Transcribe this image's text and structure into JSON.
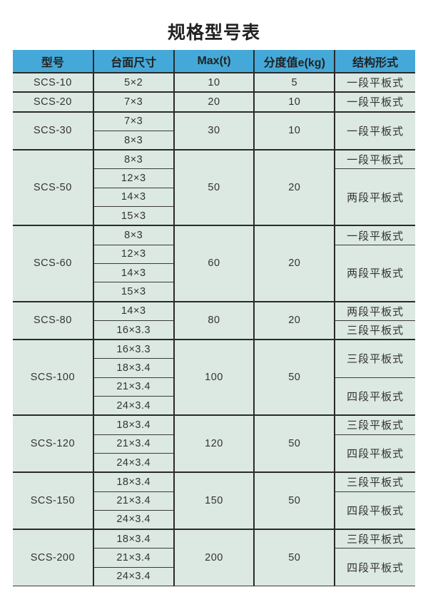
{
  "title": "规格型号表",
  "headers": [
    "型号",
    "台面尺寸",
    "Max(t)",
    "分度值e(kg)",
    "结构形式"
  ],
  "colors": {
    "header_bg": "#44a9d8",
    "row_bg": "#dce9e2",
    "border": "#2a2a2a"
  },
  "rows": [
    {
      "model": "SCS-10",
      "sizes": [
        "5×2"
      ],
      "max": "10",
      "division": "5",
      "structures": [
        {
          "label": "一段平板式",
          "span": 1
        }
      ]
    },
    {
      "model": "SCS-20",
      "sizes": [
        "7×3"
      ],
      "max": "20",
      "division": "10",
      "structures": [
        {
          "label": "一段平板式",
          "span": 1
        }
      ]
    },
    {
      "model": "SCS-30",
      "sizes": [
        "7×3",
        "8×3"
      ],
      "max": "30",
      "division": "10",
      "structures": [
        {
          "label": "一段平板式",
          "span": 2
        }
      ]
    },
    {
      "model": "SCS-50",
      "sizes": [
        "8×3",
        "12×3",
        "14×3",
        "15×3"
      ],
      "max": "50",
      "division": "20",
      "structures": [
        {
          "label": "一段平板式",
          "span": 1
        },
        {
          "label": "两段平板式",
          "span": 3
        }
      ]
    },
    {
      "model": "SCS-60",
      "sizes": [
        "8×3",
        "12×3",
        "14×3",
        "15×3"
      ],
      "max": "60",
      "division": "20",
      "structures": [
        {
          "label": "一段平板式",
          "span": 1
        },
        {
          "label": "两段平板式",
          "span": 3
        }
      ]
    },
    {
      "model": "SCS-80",
      "sizes": [
        "14×3",
        "16×3.3"
      ],
      "max": "80",
      "division": "20",
      "structures": [
        {
          "label": "两段平板式",
          "span": 1
        },
        {
          "label": "三段平板式",
          "span": 1
        }
      ]
    },
    {
      "model": "SCS-100",
      "sizes": [
        "16×3.3",
        "18×3.4",
        "21×3.4",
        "24×3.4"
      ],
      "max": "100",
      "division": "50",
      "structures": [
        {
          "label": "三段平板式",
          "span": 2
        },
        {
          "label": "四段平板式",
          "span": 2
        }
      ]
    },
    {
      "model": "SCS-120",
      "sizes": [
        "18×3.4",
        "21×3.4",
        "24×3.4"
      ],
      "max": "120",
      "division": "50",
      "structures": [
        {
          "label": "三段平板式",
          "span": 1
        },
        {
          "label": "四段平板式",
          "span": 2
        }
      ]
    },
    {
      "model": "SCS-150",
      "sizes": [
        "18×3.4",
        "21×3.4",
        "24×3.4"
      ],
      "max": "150",
      "division": "50",
      "structures": [
        {
          "label": "三段平板式",
          "span": 1
        },
        {
          "label": "四段平板式",
          "span": 2
        }
      ]
    },
    {
      "model": "SCS-200",
      "sizes": [
        "18×3.4",
        "21×3.4",
        "24×3.4"
      ],
      "max": "200",
      "division": "50",
      "structures": [
        {
          "label": "三段平板式",
          "span": 1
        },
        {
          "label": "四段平板式",
          "span": 2
        }
      ]
    }
  ]
}
